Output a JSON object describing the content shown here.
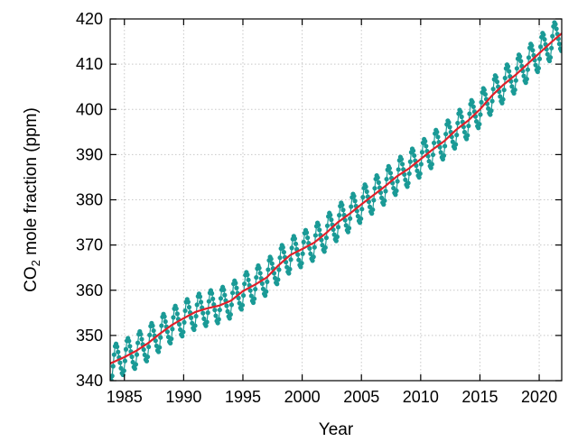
{
  "chart_data": {
    "type": "line",
    "xlabel": "Year",
    "ylabel_main": "CO",
    "ylabel_sub": "2",
    "ylabel_rest": " mole fraction (ppm)",
    "xlim": [
      1983.8,
      2021.9
    ],
    "ylim": [
      340,
      420
    ],
    "xticks": [
      1985,
      1990,
      1995,
      2000,
      2005,
      2010,
      2015,
      2020
    ],
    "yticks": [
      340,
      350,
      360,
      370,
      380,
      390,
      400,
      410,
      420
    ],
    "grid": true,
    "colors": {
      "monthly": "#1a9a96",
      "trend": "#e0202a"
    },
    "series": [
      {
        "role": "monthly",
        "generator": {
          "x_start": 1983.8,
          "x_end": 2021.9,
          "step_years": 0.0833,
          "seasonal_amplitude_ppm": 3.6,
          "peak_month_fraction": 0.33
        }
      },
      {
        "role": "trend",
        "x": [
          1983.8,
          1985,
          1986,
          1987,
          1988,
          1989,
          1990,
          1991,
          1992,
          1993,
          1994,
          1995,
          1996,
          1997,
          1998,
          1999,
          2000,
          2001,
          2002,
          2003,
          2004,
          2005,
          2006,
          2007,
          2008,
          2009,
          2010,
          2011,
          2012,
          2013,
          2014,
          2015,
          2016,
          2017,
          2018,
          2019,
          2020,
          2021,
          2021.9
        ],
        "y": [
          343.8,
          345.2,
          346.6,
          348.3,
          350.4,
          352.3,
          353.8,
          355.2,
          356.0,
          356.6,
          357.7,
          359.8,
          361.2,
          362.8,
          365.5,
          367.8,
          369.1,
          370.5,
          372.6,
          375.0,
          376.9,
          379.0,
          381.0,
          383.0,
          385.2,
          386.9,
          389.0,
          391.1,
          393.0,
          395.5,
          397.5,
          400.0,
          403.0,
          405.5,
          407.6,
          410.0,
          412.4,
          414.8,
          416.8
        ]
      }
    ]
  }
}
